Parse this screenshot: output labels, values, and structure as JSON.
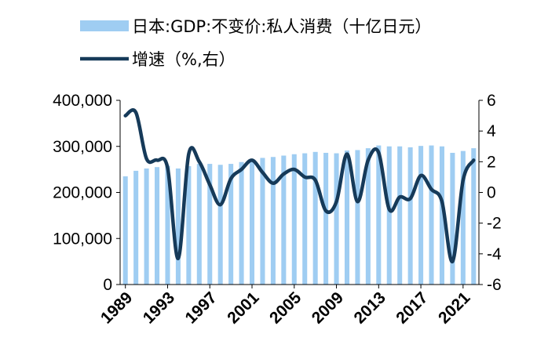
{
  "chart_data": {
    "type": "bar+line",
    "x": [
      1989,
      1990,
      1991,
      1992,
      1993,
      1994,
      1995,
      1996,
      1997,
      1998,
      1999,
      2000,
      2001,
      2002,
      2003,
      2004,
      2005,
      2006,
      2007,
      2008,
      2009,
      2010,
      2011,
      2012,
      2013,
      2014,
      2015,
      2016,
      2017,
      2018,
      2019,
      2020,
      2021,
      2022
    ],
    "x_tick_labels": [
      "1989",
      "1993",
      "1997",
      "2001",
      "2005",
      "2009",
      "2013",
      "2017",
      "2021"
    ],
    "series": [
      {
        "name": "日本:GDP:不变价:私人消费（十亿日元）",
        "type": "bar",
        "axis": "left",
        "color": "#9fcdf2",
        "values": [
          235000,
          247000,
          252000,
          255000,
          258000,
          252000,
          257000,
          262000,
          262000,
          260000,
          262000,
          266000,
          271000,
          275000,
          277000,
          280000,
          283000,
          285000,
          288000,
          286000,
          285000,
          291000,
          292000,
          296000,
          302000,
          300000,
          300000,
          298000,
          301000,
          302000,
          300000,
          286000,
          290000,
          296000
        ]
      },
      {
        "name": "增速（%,右）",
        "type": "line",
        "axis": "right",
        "color": "#163a59",
        "values": [
          5.0,
          5.2,
          2.2,
          2.1,
          1.6,
          -4.3,
          2.5,
          2.0,
          0.5,
          -0.8,
          0.9,
          1.5,
          2.1,
          1.3,
          0.6,
          1.2,
          1.5,
          1.0,
          0.8,
          -1.2,
          -0.6,
          2.5,
          -0.6,
          2.1,
          2.6,
          -1.1,
          -0.3,
          -0.4,
          1.1,
          0.2,
          -0.6,
          -4.5,
          0.8,
          2.1
        ]
      }
    ],
    "yleft": {
      "ticks": [
        "0",
        "100,000",
        "200,000",
        "300,000",
        "400,000"
      ],
      "ylim": [
        0,
        400000
      ]
    },
    "yright": {
      "ticks": [
        "-6",
        "-4",
        "-2",
        "0",
        "2",
        "4",
        "6"
      ],
      "ylim": [
        -6,
        6
      ]
    },
    "legend": [
      {
        "label": "日本:GDP:不变价:私人消费（十亿日元）",
        "symbol": "bar"
      },
      {
        "label": "增速（%,右）",
        "symbol": "line"
      }
    ],
    "legend_position": "top-left",
    "grid": false
  }
}
